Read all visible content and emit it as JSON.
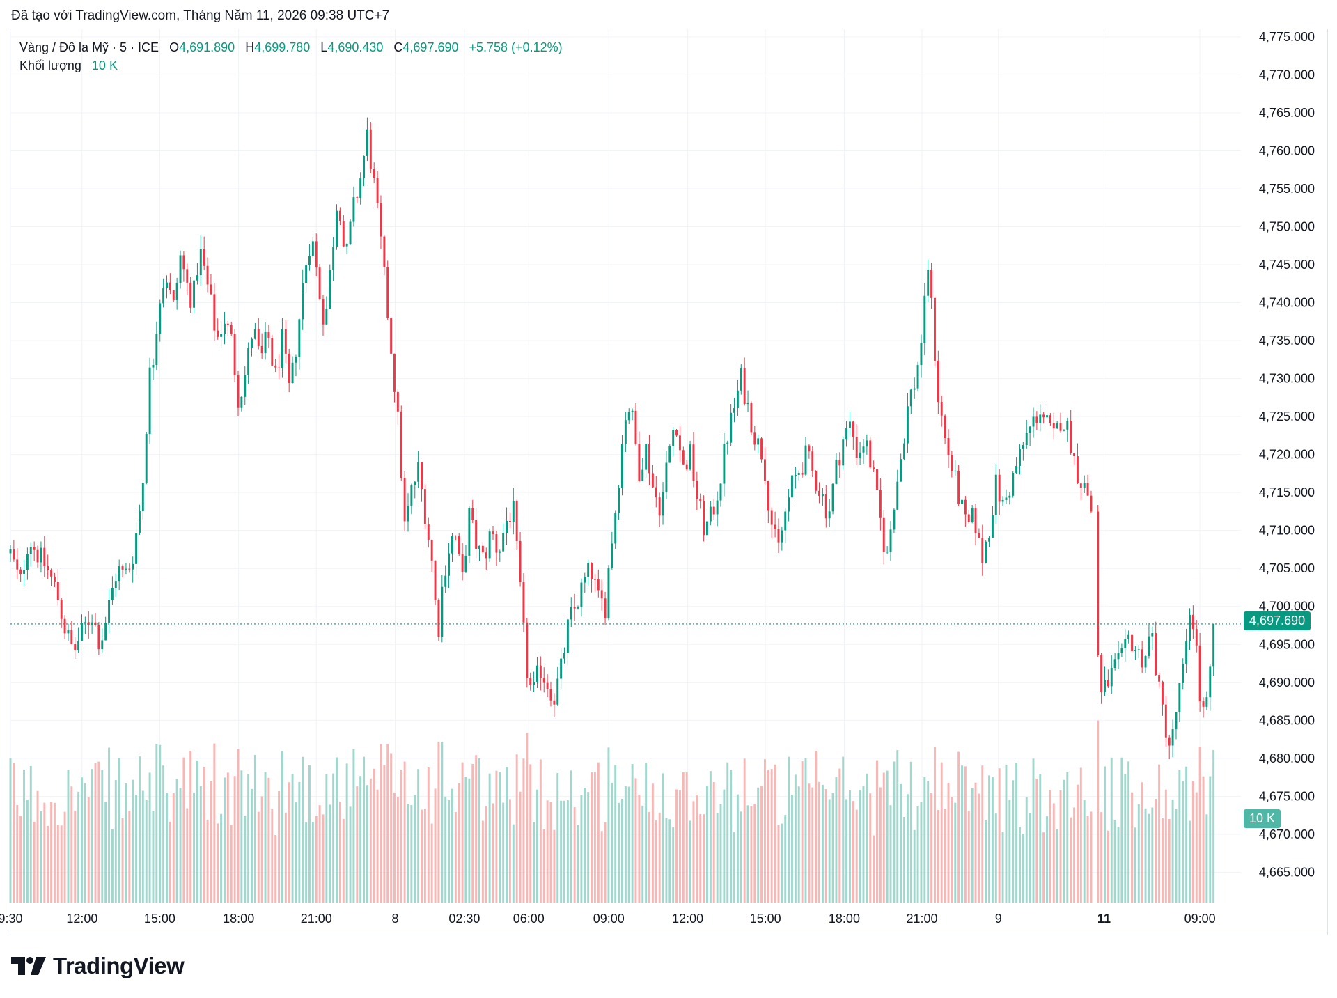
{
  "caption": "Đã tạo với TradingView.com, Tháng Năm 11, 2026 09:38 UTC+7",
  "legend": {
    "symbol": "Vàng / Đô la Mỹ · 5 · ICE",
    "o_label": "O",
    "o_value": "4,691.890",
    "h_label": "H",
    "h_value": "4,699.780",
    "l_label": "L",
    "l_value": "4,690.430",
    "c_label": "C",
    "c_value": "4,697.690",
    "change": "+5.758 (+0.12%)",
    "volume_label": "Khối lượng",
    "volume_value": "10 K"
  },
  "price_tag": "4,697.690",
  "volume_tag": "10 K",
  "brand": "TradingView",
  "colors": {
    "up": "#089981",
    "down": "#f23645",
    "up_volume": "#8fd1c5",
    "down_volume": "#f7a9a7",
    "grid": "#f0f3fa",
    "axis_text": "#131722"
  },
  "chart_data": {
    "type": "candlestick",
    "symbol": "Vàng / Đô la Mỹ",
    "interval": "5",
    "ylim": [
      4661,
      4776
    ],
    "y_ticks": [
      "4,775.000",
      "4,770.000",
      "4,765.000",
      "4,760.000",
      "4,755.000",
      "4,750.000",
      "4,745.000",
      "4,740.000",
      "4,735.000",
      "4,730.000",
      "4,725.000",
      "4,720.000",
      "4,715.000",
      "4,710.000",
      "4,705.000",
      "4,700.000",
      "4,695.000",
      "4,690.000",
      "4,685.000",
      "4,680.000",
      "4,675.000",
      "4,670.000",
      "4,665.000"
    ],
    "x_ticks": [
      {
        "label": "9:30",
        "at": 0
      },
      {
        "label": "12:00",
        "at": 0.059
      },
      {
        "label": "15:00",
        "at": 0.123
      },
      {
        "label": "18:00",
        "at": 0.188
      },
      {
        "label": "21:00",
        "at": 0.252
      },
      {
        "label": "8",
        "at": 0.317
      },
      {
        "label": "02:30",
        "at": 0.374
      },
      {
        "label": "06:00",
        "at": 0.427
      },
      {
        "label": "09:00",
        "at": 0.493
      },
      {
        "label": "12:00",
        "at": 0.558
      },
      {
        "label": "15:00",
        "at": 0.622
      },
      {
        "label": "18:00",
        "at": 0.687
      },
      {
        "label": "21:00",
        "at": 0.751
      },
      {
        "label": "9",
        "at": 0.814
      },
      {
        "label": "11",
        "at": 0.901,
        "bold": true
      },
      {
        "label": "09:00",
        "at": 0.98
      }
    ],
    "x_range": [
      0,
      1
    ],
    "last_price": 4697.69,
    "price_path": [
      [
        0.0,
        4707
      ],
      [
        0.008,
        4703
      ],
      [
        0.015,
        4709
      ],
      [
        0.022,
        4707
      ],
      [
        0.03,
        4705
      ],
      [
        0.038,
        4702
      ],
      [
        0.045,
        4697
      ],
      [
        0.052,
        4694
      ],
      [
        0.06,
        4697
      ],
      [
        0.067,
        4699
      ],
      [
        0.074,
        4695
      ],
      [
        0.081,
        4700
      ],
      [
        0.088,
        4705
      ],
      [
        0.094,
        4704
      ],
      [
        0.1,
        4706
      ],
      [
        0.106,
        4712
      ],
      [
        0.11,
        4718
      ],
      [
        0.114,
        4730
      ],
      [
        0.118,
        4733
      ],
      [
        0.122,
        4740
      ],
      [
        0.128,
        4744
      ],
      [
        0.134,
        4739
      ],
      [
        0.14,
        4746
      ],
      [
        0.146,
        4742
      ],
      [
        0.15,
        4740
      ],
      [
        0.156,
        4747
      ],
      [
        0.16,
        4744
      ],
      [
        0.165,
        4740
      ],
      [
        0.17,
        4735
      ],
      [
        0.176,
        4738
      ],
      [
        0.182,
        4735
      ],
      [
        0.188,
        4727
      ],
      [
        0.194,
        4731
      ],
      [
        0.2,
        4737
      ],
      [
        0.206,
        4732
      ],
      [
        0.212,
        4736
      ],
      [
        0.218,
        4730
      ],
      [
        0.224,
        4735
      ],
      [
        0.23,
        4728
      ],
      [
        0.236,
        4735
      ],
      [
        0.242,
        4744
      ],
      [
        0.248,
        4749
      ],
      [
        0.254,
        4742
      ],
      [
        0.259,
        4737
      ],
      [
        0.264,
        4745
      ],
      [
        0.27,
        4755
      ],
      [
        0.276,
        4745
      ],
      [
        0.282,
        4752
      ],
      [
        0.288,
        4756
      ],
      [
        0.294,
        4762
      ],
      [
        0.3,
        4755
      ],
      [
        0.305,
        4748
      ],
      [
        0.31,
        4740
      ],
      [
        0.316,
        4730
      ],
      [
        0.32,
        4723
      ],
      [
        0.325,
        4710
      ],
      [
        0.33,
        4715
      ],
      [
        0.336,
        4718
      ],
      [
        0.342,
        4712
      ],
      [
        0.348,
        4705
      ],
      [
        0.352,
        4696
      ],
      [
        0.356,
        4703
      ],
      [
        0.36,
        4707
      ],
      [
        0.366,
        4710
      ],
      [
        0.372,
        4703
      ],
      [
        0.378,
        4712
      ],
      [
        0.384,
        4708
      ],
      [
        0.39,
        4706
      ],
      [
        0.396,
        4710
      ],
      [
        0.402,
        4707
      ],
      [
        0.408,
        4711
      ],
      [
        0.414,
        4713
      ],
      [
        0.42,
        4702
      ],
      [
        0.425,
        4692
      ],
      [
        0.43,
        4688
      ],
      [
        0.436,
        4692
      ],
      [
        0.442,
        4690
      ],
      [
        0.448,
        4688
      ],
      [
        0.454,
        4692
      ],
      [
        0.46,
        4698
      ],
      [
        0.466,
        4700
      ],
      [
        0.472,
        4703
      ],
      [
        0.478,
        4705
      ],
      [
        0.484,
        4701
      ],
      [
        0.49,
        4700
      ],
      [
        0.494,
        4707
      ],
      [
        0.498,
        4712
      ],
      [
        0.503,
        4720
      ],
      [
        0.508,
        4727
      ],
      [
        0.512,
        4725
      ],
      [
        0.518,
        4718
      ],
      [
        0.524,
        4721
      ],
      [
        0.53,
        4715
      ],
      [
        0.536,
        4713
      ],
      [
        0.542,
        4720
      ],
      [
        0.548,
        4725
      ],
      [
        0.554,
        4718
      ],
      [
        0.56,
        4720
      ],
      [
        0.566,
        4714
      ],
      [
        0.572,
        4710
      ],
      [
        0.578,
        4712
      ],
      [
        0.584,
        4716
      ],
      [
        0.59,
        4722
      ],
      [
        0.596,
        4726
      ],
      [
        0.602,
        4730
      ],
      [
        0.608,
        4726
      ],
      [
        0.614,
        4722
      ],
      [
        0.62,
        4720
      ],
      [
        0.626,
        4712
      ],
      [
        0.632,
        4707
      ],
      [
        0.638,
        4712
      ],
      [
        0.644,
        4716
      ],
      [
        0.65,
        4718
      ],
      [
        0.656,
        4720
      ],
      [
        0.662,
        4717
      ],
      [
        0.668,
        4715
      ],
      [
        0.674,
        4712
      ],
      [
        0.68,
        4718
      ],
      [
        0.686,
        4722
      ],
      [
        0.692,
        4724
      ],
      [
        0.698,
        4720
      ],
      [
        0.704,
        4722
      ],
      [
        0.71,
        4718
      ],
      [
        0.716,
        4712
      ],
      [
        0.722,
        4706
      ],
      [
        0.728,
        4714
      ],
      [
        0.734,
        4720
      ],
      [
        0.74,
        4727
      ],
      [
        0.746,
        4730
      ],
      [
        0.752,
        4737
      ],
      [
        0.756,
        4745
      ],
      [
        0.76,
        4737
      ],
      [
        0.764,
        4728
      ],
      [
        0.77,
        4722
      ],
      [
        0.776,
        4718
      ],
      [
        0.782,
        4714
      ],
      [
        0.788,
        4710
      ],
      [
        0.794,
        4712
      ],
      [
        0.8,
        4706
      ],
      [
        0.806,
        4710
      ],
      [
        0.812,
        4716
      ],
      [
        0.818,
        4713
      ],
      [
        0.824,
        4716
      ],
      [
        0.83,
        4719
      ],
      [
        0.836,
        4722
      ],
      [
        0.842,
        4724
      ],
      [
        0.848,
        4726
      ],
      [
        0.854,
        4724
      ],
      [
        0.86,
        4722
      ],
      [
        0.866,
        4725
      ],
      [
        0.872,
        4723
      ],
      [
        0.878,
        4718
      ],
      [
        0.884,
        4716
      ],
      [
        0.89,
        4714
      ],
      [
        0.894,
        4700
      ],
      [
        0.898,
        4688
      ],
      [
        0.904,
        4690
      ],
      [
        0.91,
        4692
      ],
      [
        0.916,
        4693
      ],
      [
        0.922,
        4696
      ],
      [
        0.928,
        4694
      ],
      [
        0.934,
        4693
      ],
      [
        0.94,
        4697
      ],
      [
        0.946,
        4689
      ],
      [
        0.952,
        4684
      ],
      [
        0.956,
        4681
      ],
      [
        0.962,
        4688
      ],
      [
        0.968,
        4693
      ],
      [
        0.972,
        4700
      ],
      [
        0.976,
        4697
      ],
      [
        0.98,
        4688
      ],
      [
        0.984,
        4685
      ],
      [
        0.988,
        4690
      ],
      [
        0.992,
        4697.69
      ]
    ]
  }
}
